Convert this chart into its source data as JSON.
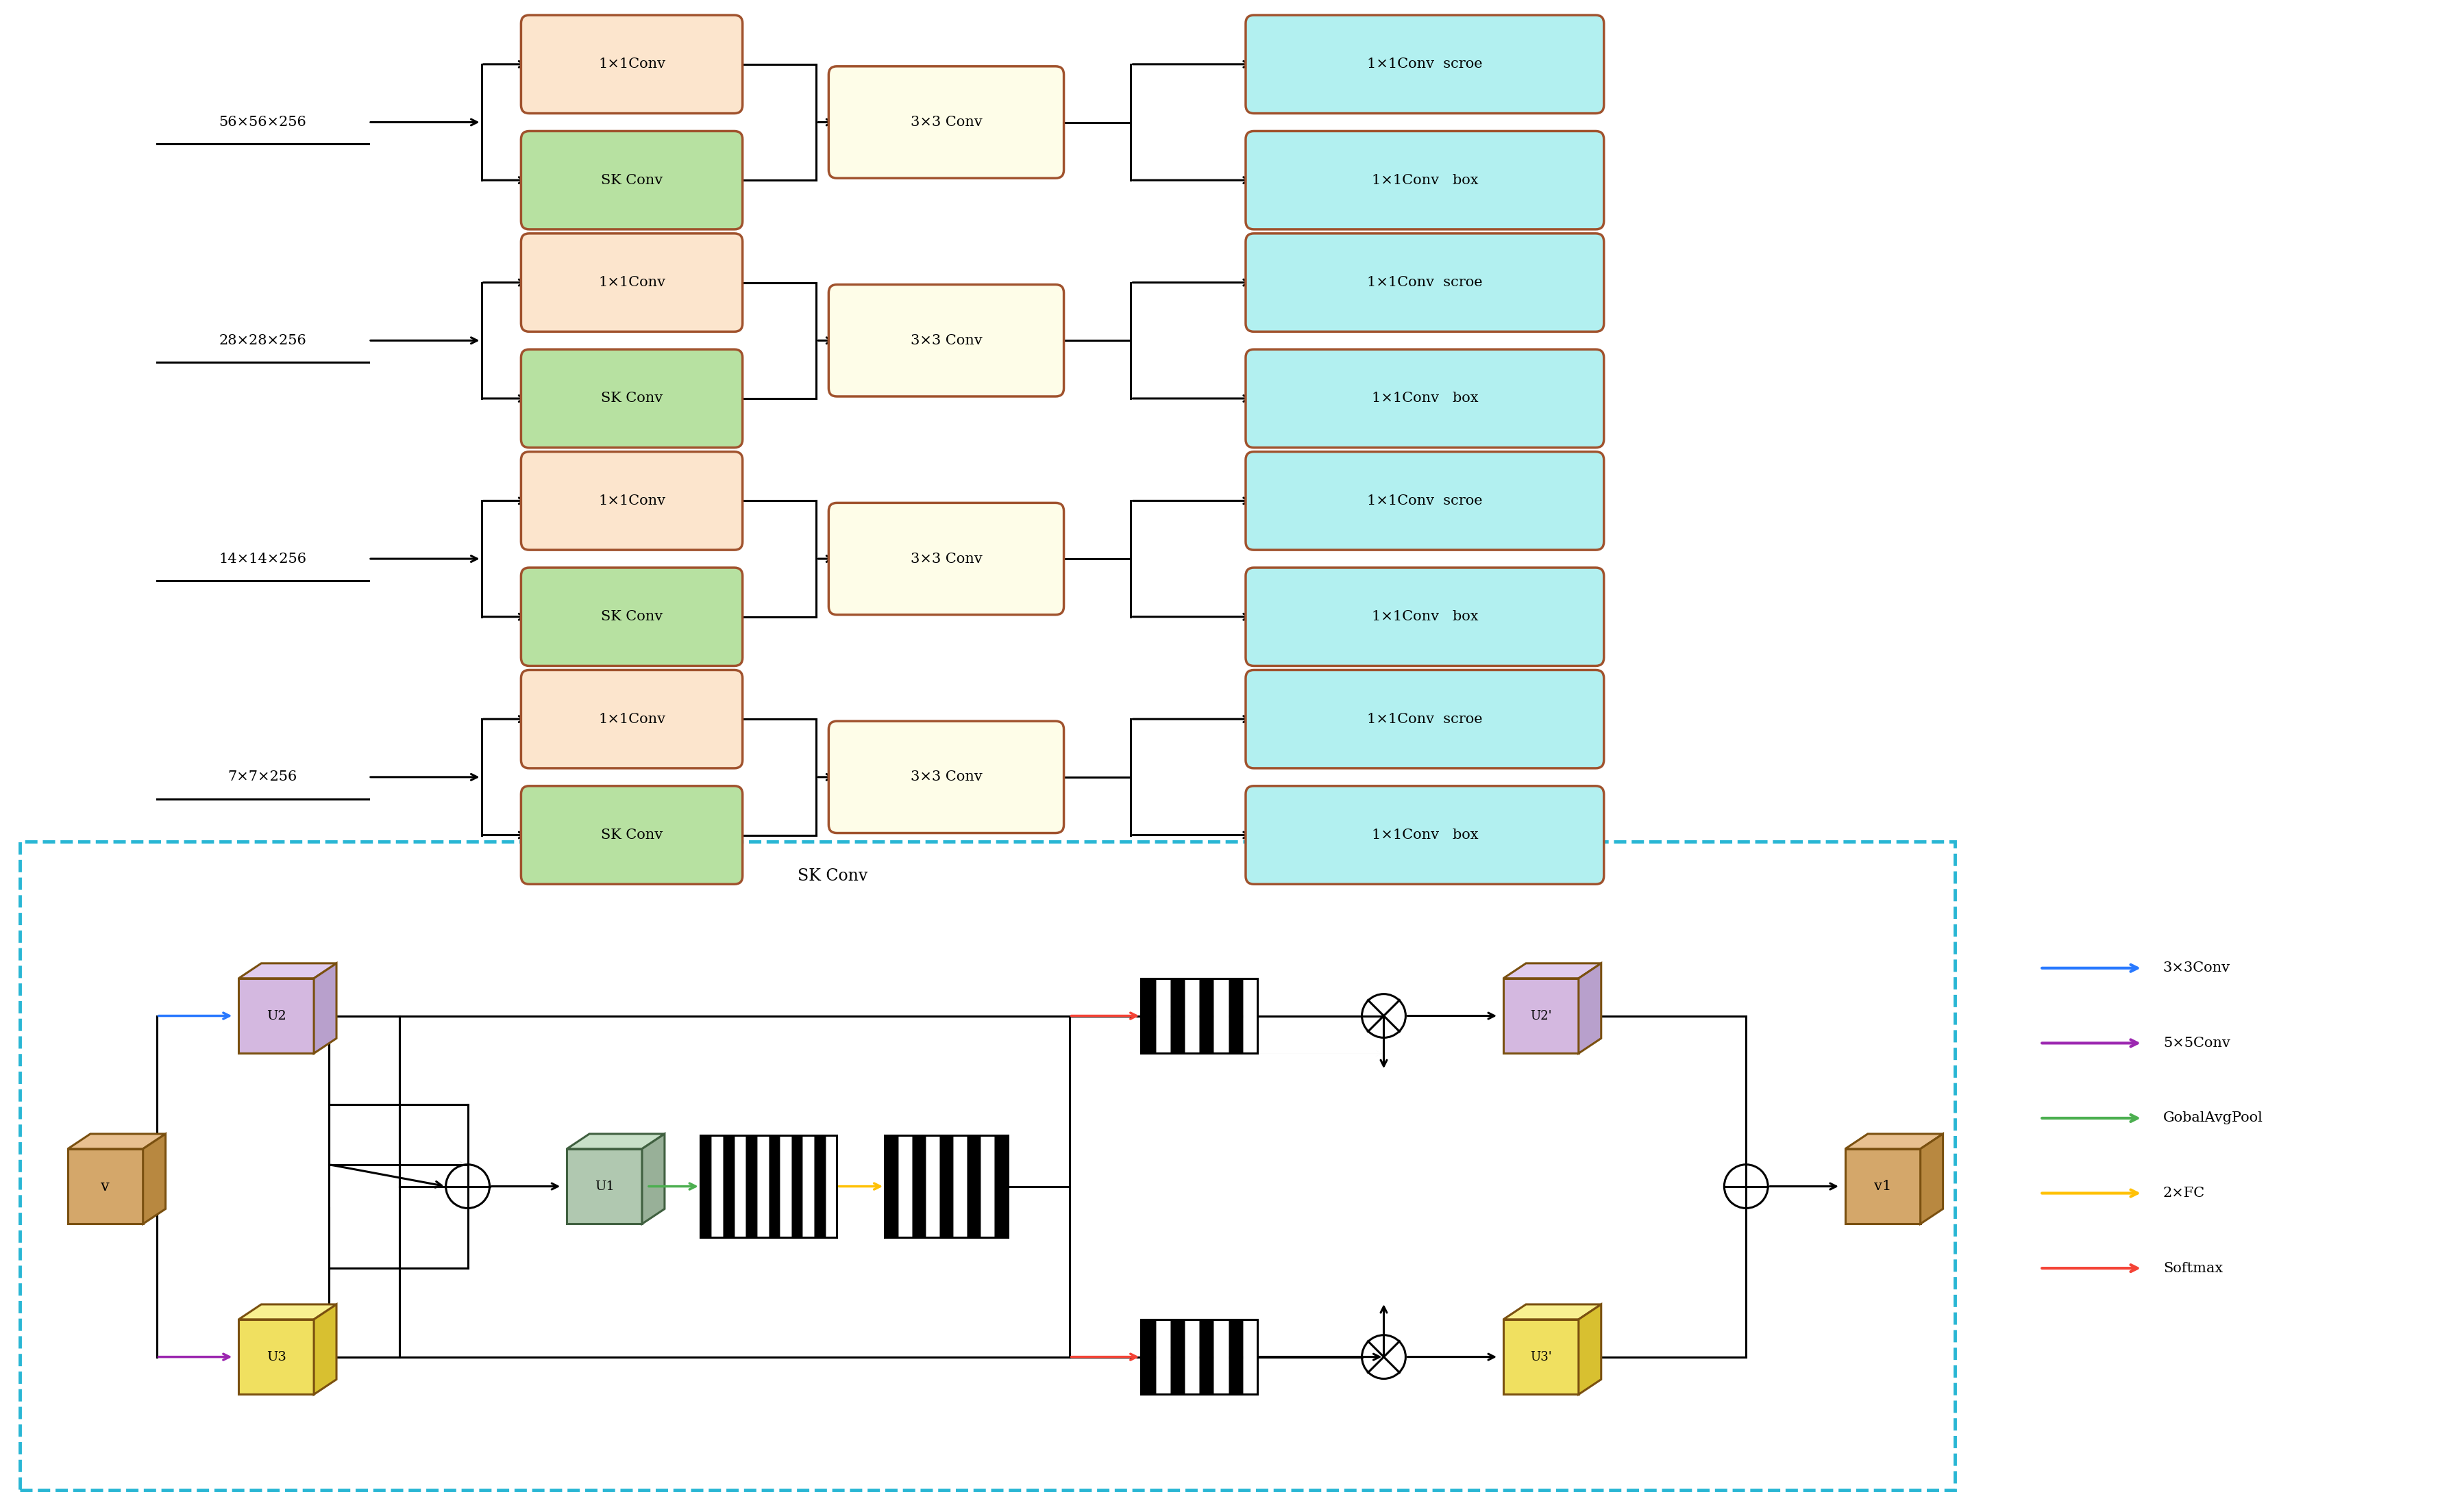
{
  "bg": "#ffffff",
  "rows": [
    {
      "lbl": "56×56×256"
    },
    {
      "lbl": "28×28×256"
    },
    {
      "lbl": "14×14×256"
    },
    {
      "lbl": "7×7×256"
    }
  ],
  "conv1x1_fc": "#fce5cd",
  "conv1x1_ec": "#a0522d",
  "skconv_fc": "#b7e1a1",
  "skconv_ec": "#a0522d",
  "conv3x3_fc": "#fefde8",
  "conv3x3_ec": "#a0522d",
  "out_fc": "#b2f0f0",
  "out_ec": "#a0522d",
  "dash_ec": "#29b6d4",
  "legend": [
    {
      "lbl": "3×3Conv",
      "color": "#2979ff"
    },
    {
      "lbl": "5×5Conv",
      "color": "#9c27b0"
    },
    {
      "lbl": "GobalAvgPool",
      "color": "#4caf50"
    },
    {
      "lbl": "2×FC",
      "color": "#ffc107"
    },
    {
      "lbl": "Softmax",
      "color": "#f44336"
    }
  ],
  "cube_v": {
    "fc": "#d4a76a",
    "ft": "#e8c090",
    "fr": "#b88840",
    "ec": "#7a5010"
  },
  "cube_u2": {
    "fc": "#d4b8e0",
    "ft": "#e0ccee",
    "fr": "#b8a0cc",
    "ec": "#7a5010"
  },
  "cube_u3": {
    "fc": "#f0e060",
    "ft": "#f8f090",
    "fr": "#d8c030",
    "ec": "#7a5010"
  },
  "cube_u1": {
    "fc": "#b0c8b0",
    "ft": "#c8e0c8",
    "fr": "#98b098",
    "ec": "#406040"
  },
  "cube_v1": {
    "fc": "#d4a76a",
    "ft": "#e8c090",
    "fr": "#b88840",
    "ec": "#7a5010"
  }
}
